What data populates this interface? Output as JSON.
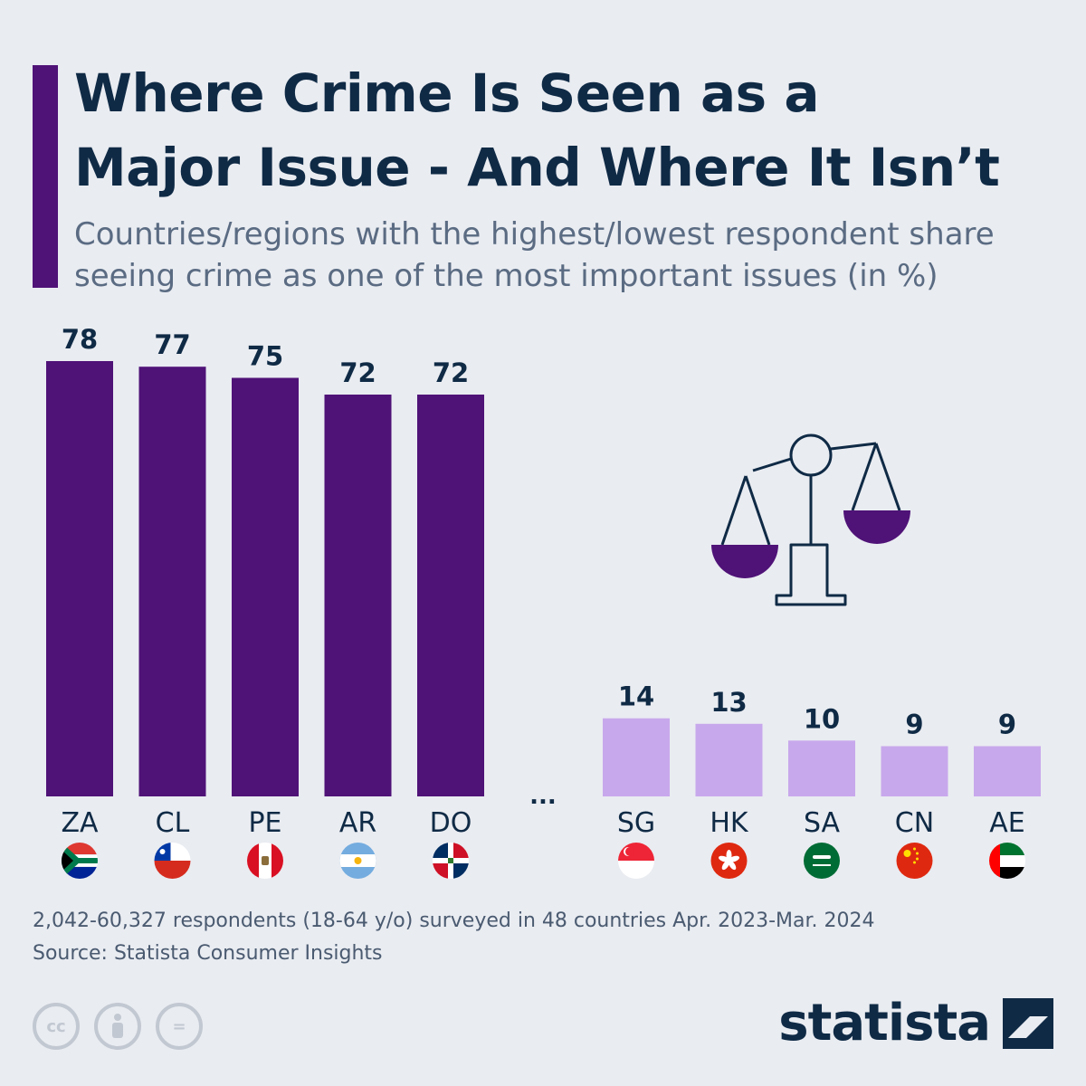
{
  "header": {
    "title_line1": "Where Crime Is Seen as a",
    "title_line2": "Major Issue - And Where It Isn’t",
    "subtitle_line1": "Countries/regions with the highest/lowest respondent share",
    "subtitle_line2": "seeing crime as one of the most important issues (in %)"
  },
  "chart_data": {
    "type": "bar",
    "title": "Where Crime Is Seen as a Major Issue - And Where It Isn’t",
    "subtitle": "Countries/regions with the highest/lowest respondent share seeing crime as one of the most important issues (in %)",
    "ylabel": "",
    "xlabel": "",
    "grid": false,
    "gap_label": "...",
    "series": [
      {
        "categories": [
          "ZA",
          "CL",
          "PE",
          "AR",
          "DO"
        ],
        "values": [
          78,
          77,
          75,
          72,
          72
        ],
        "color": "#4f1277"
      },
      {
        "categories": [
          "SG",
          "HK",
          "SA",
          "CN",
          "AE"
        ],
        "values": [
          14,
          13,
          10,
          9,
          9
        ],
        "color": "#c8a8ec"
      }
    ],
    "ylim": [
      0,
      78
    ]
  },
  "flags": {
    "ZA": "south-africa-flag-icon",
    "CL": "chile-flag-icon",
    "PE": "peru-flag-icon",
    "AR": "argentina-flag-icon",
    "DO": "dominican-republic-flag-icon",
    "SG": "singapore-flag-icon",
    "HK": "hong-kong-flag-icon",
    "SA": "saudi-arabia-flag-icon",
    "CN": "china-flag-icon",
    "AE": "uae-flag-icon"
  },
  "illustration": "scales-of-justice-icon",
  "footer": {
    "note": "2,042-60,327 respondents (18-64 y/o) surveyed in 48 countries Apr. 2023-Mar. 2024",
    "source": "Source: Statista Consumer Insights",
    "brand": "statista",
    "license_icons": [
      "cc-icon",
      "attribution-icon",
      "no-derivatives-icon"
    ],
    "cc_text": "cc",
    "nd_text": "="
  }
}
